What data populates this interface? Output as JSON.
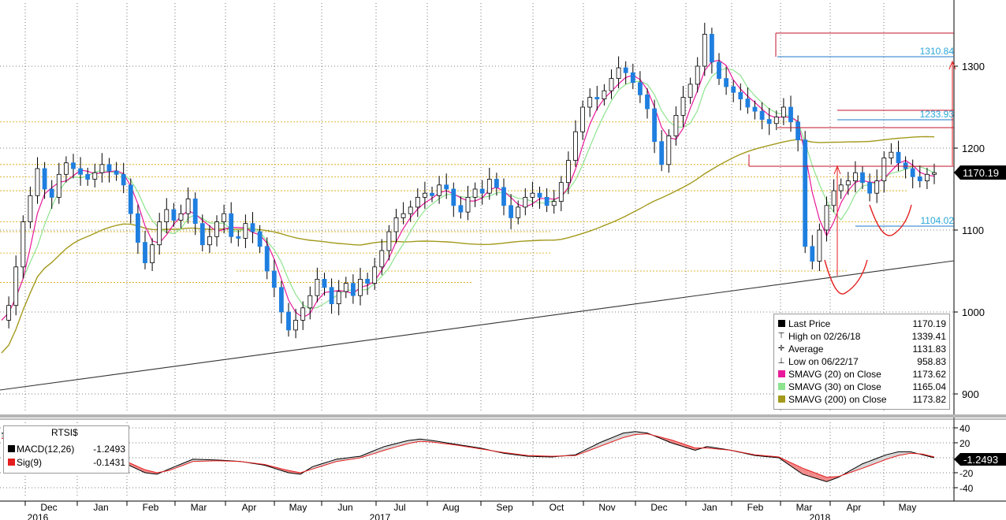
{
  "chart_data": [
    {
      "type": "line",
      "name": "RTSI$",
      "ylim": [
        860,
        1370
      ],
      "y_ticks": [
        900,
        1000,
        1100,
        1200,
        1300
      ],
      "x_month_labels": [
        "Dec",
        "Jan",
        "Feb",
        "Mar",
        "Apr",
        "May",
        "Jun",
        "Jul",
        "Aug",
        "Sep",
        "Oct",
        "Nov",
        "Dec",
        "Jan",
        "Feb",
        "Mar",
        "Apr",
        "May"
      ],
      "x_year_labels": [
        "2016",
        "2017",
        "2018"
      ],
      "grid": true,
      "last_price_tag": "1170.19",
      "level_labels": [
        "1310.84",
        "1233.93",
        "1104.02"
      ],
      "price_path": [
        [
          0,
          990
        ],
        [
          1,
          1008
        ],
        [
          2,
          1055
        ],
        [
          3,
          1110
        ],
        [
          4,
          1142
        ],
        [
          5,
          1175
        ],
        [
          6,
          1150
        ],
        [
          7,
          1140
        ],
        [
          8,
          1168
        ],
        [
          9,
          1182
        ],
        [
          10,
          1175
        ],
        [
          11,
          1168
        ],
        [
          12,
          1162
        ],
        [
          13,
          1170
        ],
        [
          14,
          1180
        ],
        [
          15,
          1172
        ],
        [
          16,
          1168
        ],
        [
          17,
          1155
        ],
        [
          18,
          1120
        ],
        [
          19,
          1085
        ],
        [
          20,
          1060
        ],
        [
          21,
          1082
        ],
        [
          22,
          1110
        ],
        [
          23,
          1125
        ],
        [
          24,
          1112
        ],
        [
          25,
          1120
        ],
        [
          26,
          1138
        ],
        [
          27,
          1108
        ],
        [
          28,
          1082
        ],
        [
          29,
          1092
        ],
        [
          30,
          1110
        ],
        [
          31,
          1120
        ],
        [
          32,
          1092
        ],
        [
          33,
          1090
        ],
        [
          34,
          1108
        ],
        [
          35,
          1098
        ],
        [
          36,
          1080
        ],
        [
          37,
          1050
        ],
        [
          38,
          1030
        ],
        [
          39,
          1000
        ],
        [
          40,
          978
        ],
        [
          41,
          990
        ],
        [
          42,
          1005
        ],
        [
          43,
          1020
        ],
        [
          44,
          1040
        ],
        [
          45,
          1030
        ],
        [
          46,
          1010
        ],
        [
          47,
          1025
        ],
        [
          48,
          1035
        ],
        [
          49,
          1020
        ],
        [
          50,
          1040
        ],
        [
          51,
          1035
        ],
        [
          52,
          1055
        ],
        [
          53,
          1075
        ],
        [
          54,
          1098
        ],
        [
          55,
          1115
        ],
        [
          56,
          1120
        ],
        [
          57,
          1128
        ],
        [
          58,
          1140
        ],
        [
          59,
          1145
        ],
        [
          60,
          1142
        ],
        [
          61,
          1155
        ],
        [
          62,
          1150
        ],
        [
          63,
          1130
        ],
        [
          64,
          1122
        ],
        [
          65,
          1140
        ],
        [
          66,
          1150
        ],
        [
          67,
          1145
        ],
        [
          68,
          1162
        ],
        [
          69,
          1152
        ],
        [
          70,
          1130
        ],
        [
          71,
          1115
        ],
        [
          72,
          1128
        ],
        [
          73,
          1140
        ],
        [
          74,
          1145
        ],
        [
          75,
          1140
        ],
        [
          76,
          1130
        ],
        [
          77,
          1135
        ],
        [
          78,
          1158
        ],
        [
          79,
          1185
        ],
        [
          80,
          1220
        ],
        [
          81,
          1250
        ],
        [
          82,
          1262
        ],
        [
          83,
          1260
        ],
        [
          84,
          1270
        ],
        [
          85,
          1285
        ],
        [
          86,
          1298
        ],
        [
          87,
          1292
        ],
        [
          88,
          1280
        ],
        [
          89,
          1265
        ],
        [
          90,
          1248
        ],
        [
          91,
          1208
        ],
        [
          92,
          1180
        ],
        [
          93,
          1215
        ],
        [
          94,
          1240
        ],
        [
          95,
          1262
        ],
        [
          96,
          1278
        ],
        [
          97,
          1300
        ],
        [
          98,
          1339
        ],
        [
          99,
          1305
        ],
        [
          100,
          1285
        ],
        [
          101,
          1275
        ],
        [
          102,
          1268
        ],
        [
          103,
          1260
        ],
        [
          104,
          1250
        ],
        [
          105,
          1245
        ],
        [
          106,
          1235
        ],
        [
          107,
          1230
        ],
        [
          108,
          1238
        ],
        [
          109,
          1250
        ],
        [
          110,
          1232
        ],
        [
          111,
          1210
        ],
        [
          112,
          1080
        ],
        [
          113,
          1062
        ],
        [
          114,
          1100
        ],
        [
          115,
          1130
        ],
        [
          116,
          1148
        ],
        [
          117,
          1155
        ],
        [
          118,
          1160
        ],
        [
          119,
          1170
        ],
        [
          120,
          1158
        ],
        [
          121,
          1145
        ],
        [
          122,
          1160
        ],
        [
          123,
          1188
        ],
        [
          124,
          1195
        ],
        [
          125,
          1182
        ],
        [
          126,
          1175
        ],
        [
          127,
          1165
        ],
        [
          128,
          1160
        ],
        [
          129,
          1168
        ],
        [
          130,
          1170
        ]
      ],
      "series": [
        {
          "name": "Last Price",
          "color": "#000000",
          "value": "1170.19"
        },
        {
          "name": "SMAVG (20) on Close",
          "color": "#e8199a",
          "value": "1173.62"
        },
        {
          "name": "SMAVG (30) on Close",
          "color": "#8ee38e",
          "value": "1165.04"
        },
        {
          "name": "SMAVG (200) on Close",
          "color": "#a39a1c",
          "value": "1173.82"
        }
      ],
      "stats": {
        "high": "1339.41",
        "high_date": "02/26/18",
        "average": "1131.83",
        "low": "958.83",
        "low_date": "06/22/17"
      }
    },
    {
      "type": "area",
      "name": "MACD",
      "ylim": [
        -48,
        50
      ],
      "y_ticks": [
        40,
        20,
        -20,
        -40
      ],
      "last_value_tag": "-1.2493",
      "macd": [
        [
          0,
          33
        ],
        [
          4,
          28
        ],
        [
          8,
          20
        ],
        [
          12,
          8
        ],
        [
          16,
          5
        ],
        [
          20,
          -5
        ],
        [
          24,
          -20
        ],
        [
          26,
          -22
        ],
        [
          28,
          -15
        ],
        [
          32,
          -2
        ],
        [
          36,
          -3
        ],
        [
          40,
          -5
        ],
        [
          44,
          -10
        ],
        [
          48,
          -20
        ],
        [
          50,
          -22
        ],
        [
          52,
          -12
        ],
        [
          56,
          -2
        ],
        [
          60,
          2
        ],
        [
          64,
          15
        ],
        [
          68,
          23
        ],
        [
          70,
          25
        ],
        [
          72,
          23
        ],
        [
          76,
          18
        ],
        [
          80,
          13
        ],
        [
          84,
          6
        ],
        [
          88,
          2
        ],
        [
          92,
          1
        ],
        [
          96,
          4
        ],
        [
          100,
          20
        ],
        [
          104,
          33
        ],
        [
          106,
          35
        ],
        [
          108,
          33
        ],
        [
          112,
          20
        ],
        [
          116,
          10
        ],
        [
          118,
          15
        ],
        [
          122,
          10
        ],
        [
          126,
          3
        ],
        [
          130,
          0
        ],
        [
          134,
          -22
        ],
        [
          138,
          -32
        ],
        [
          140,
          -26
        ],
        [
          144,
          -8
        ],
        [
          148,
          4
        ],
        [
          150,
          8
        ],
        [
          152,
          8
        ],
        [
          154,
          4
        ],
        [
          156,
          0
        ]
      ],
      "signal": [
        [
          0,
          26
        ],
        [
          4,
          24
        ],
        [
          8,
          17
        ],
        [
          12,
          10
        ],
        [
          16,
          7
        ],
        [
          20,
          -2
        ],
        [
          24,
          -16
        ],
        [
          26,
          -20
        ],
        [
          28,
          -17
        ],
        [
          32,
          -5
        ],
        [
          36,
          -4
        ],
        [
          40,
          -5
        ],
        [
          44,
          -9
        ],
        [
          48,
          -17
        ],
        [
          50,
          -20
        ],
        [
          52,
          -15
        ],
        [
          56,
          -5
        ],
        [
          60,
          0
        ],
        [
          64,
          10
        ],
        [
          68,
          19
        ],
        [
          70,
          22
        ],
        [
          72,
          21
        ],
        [
          76,
          17
        ],
        [
          80,
          12
        ],
        [
          84,
          7
        ],
        [
          88,
          3
        ],
        [
          92,
          2
        ],
        [
          96,
          3
        ],
        [
          100,
          15
        ],
        [
          104,
          27
        ],
        [
          106,
          31
        ],
        [
          108,
          32
        ],
        [
          112,
          24
        ],
        [
          116,
          13
        ],
        [
          118,
          13
        ],
        [
          122,
          10
        ],
        [
          126,
          4
        ],
        [
          130,
          1
        ],
        [
          134,
          -14
        ],
        [
          138,
          -26
        ],
        [
          140,
          -25
        ],
        [
          144,
          -14
        ],
        [
          148,
          -2
        ],
        [
          150,
          3
        ],
        [
          152,
          6
        ],
        [
          154,
          5
        ],
        [
          156,
          1
        ]
      ],
      "legend": {
        "title": "RTSI$",
        "macd_label": "MACD(12,26)",
        "macd_value": "-1.2493",
        "sig_label": "Sig(9)",
        "sig_value": "-0.1431"
      }
    }
  ]
}
